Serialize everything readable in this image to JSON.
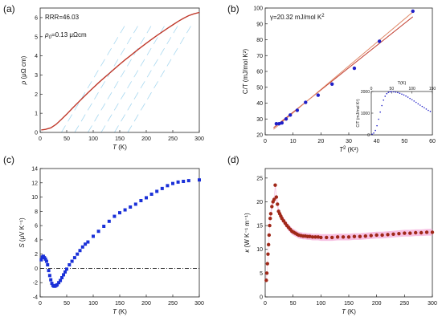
{
  "panel_labels": [
    "(a)",
    "(b)",
    "(c)",
    "(d)"
  ],
  "chart_data": [
    {
      "type": "line",
      "panel": "(a)",
      "annotations": [
        "RRR=46.03",
        "ρ0=0.13 μΩcm"
      ],
      "annotation_parts": {
        "rrr": "RRR=46.03",
        "rho_symbol": "ρ",
        "rho_sub": "0",
        "rho_value": "=0.13 μΩcm"
      },
      "xlabel_var": "T",
      "xlabel_unit": "(K)",
      "ylabel_var": "ρ",
      "ylabel_unit": "(μΩ cm)",
      "xlim": [
        0,
        300
      ],
      "ylim": [
        0,
        6.5
      ],
      "xticks": [
        0,
        50,
        100,
        150,
        200,
        250,
        300
      ],
      "yticks": [
        0,
        1,
        2,
        3,
        4,
        5,
        6
      ],
      "series": [
        {
          "color": "#c0392b",
          "x": [
            2,
            10,
            20,
            30,
            40,
            50,
            60,
            70,
            80,
            90,
            100,
            110,
            120,
            130,
            140,
            150,
            160,
            170,
            180,
            190,
            200,
            210,
            220,
            230,
            240,
            250,
            260,
            270,
            280,
            290,
            300
          ],
          "y": [
            0.13,
            0.16,
            0.24,
            0.42,
            0.68,
            0.95,
            1.24,
            1.52,
            1.8,
            2.07,
            2.33,
            2.59,
            2.84,
            3.08,
            3.32,
            3.56,
            3.79,
            4.01,
            4.23,
            4.45,
            4.66,
            4.86,
            5.06,
            5.25,
            5.44,
            5.62,
            5.8,
            5.96,
            6.1,
            6.2,
            6.27
          ]
        }
      ],
      "faint_lines_color": "#a8d8f0"
    },
    {
      "type": "scatter",
      "panel": "(b)",
      "annotations": [
        "γ=20.32 mJ/mol K²"
      ],
      "annotation_parts": {
        "gamma": "γ=20.32 mJ/mol K",
        "sup": "2"
      },
      "xlabel_var": "T",
      "xlabel_sup": "2",
      "xlabel_unit": "(K²)",
      "ylabel": "C/T (mJ/mol K²)",
      "xlim": [
        0,
        60
      ],
      "ylim": [
        20,
        100
      ],
      "xticks": [
        0,
        10,
        20,
        30,
        40,
        50,
        60
      ],
      "yticks": [
        20,
        30,
        40,
        50,
        60,
        70,
        80,
        90,
        100
      ],
      "points": {
        "color": "#2020c8",
        "x": [
          4,
          5,
          6,
          7.5,
          9,
          11.5,
          14.5,
          19,
          24,
          32,
          41,
          53
        ],
        "y": [
          27,
          27,
          27.5,
          30,
          32.5,
          35.5,
          40.5,
          45,
          52,
          62,
          79,
          98
        ]
      },
      "fit_lines": [
        {
          "color": "#c0392b",
          "x": [
            3,
            53
          ],
          "y": [
            24.5,
            94.5
          ]
        },
        {
          "color": "#e08a6a",
          "x": [
            3,
            53
          ],
          "y": [
            23.5,
            97.5
          ]
        }
      ],
      "inset": {
        "xlabel": "T(K)",
        "ylabel": "C/T (mJ/mol K²)",
        "xlim": [
          0,
          150
        ],
        "ylim": [
          0,
          2000
        ],
        "xticks": [
          0,
          50,
          100,
          150
        ],
        "yticks": [
          0,
          1000,
          2000
        ],
        "color": "#2020c8",
        "x": [
          2,
          6,
          10,
          14,
          18,
          22,
          26,
          30,
          34,
          38,
          42,
          46,
          50,
          55,
          60,
          65,
          70,
          75,
          80,
          85,
          90,
          95,
          100,
          105,
          110,
          115,
          120,
          125,
          130,
          135,
          140,
          145
        ],
        "y": [
          30,
          80,
          200,
          420,
          720,
          1050,
          1350,
          1600,
          1780,
          1900,
          1960,
          1985,
          1990,
          1985,
          1970,
          1950,
          1920,
          1880,
          1840,
          1790,
          1740,
          1680,
          1620,
          1560,
          1500,
          1430,
          1370,
          1310,
          1250,
          1190,
          1130,
          1080
        ]
      }
    },
    {
      "type": "scatter",
      "panel": "(c)",
      "xlabel_var": "T",
      "xlabel_unit": "(K)",
      "ylabel_var": "S",
      "ylabel_unit": "(μV K⁻¹)",
      "xlim": [
        0,
        300
      ],
      "ylim": [
        -4,
        14
      ],
      "xticks": [
        0,
        50,
        100,
        150,
        200,
        250,
        300
      ],
      "yticks": [
        -4,
        -2,
        0,
        2,
        4,
        6,
        8,
        10,
        12,
        14
      ],
      "reference_line_y": 0,
      "points": {
        "color": "#1a30d8",
        "x": [
          2,
          4,
          6,
          8,
          10,
          12,
          14,
          16,
          18,
          20,
          22,
          24,
          26,
          28,
          30,
          32,
          35,
          38,
          41,
          44,
          47,
          50,
          55,
          60,
          65,
          70,
          75,
          80,
          85,
          90,
          100,
          110,
          120,
          130,
          140,
          150,
          160,
          170,
          180,
          190,
          200,
          210,
          220,
          230,
          240,
          250,
          260,
          270,
          280,
          300
        ],
        "y": [
          1.2,
          1.6,
          1.7,
          1.5,
          1.3,
          1.0,
          0.5,
          -0.3,
          -1.0,
          -1.6,
          -2.1,
          -2.4,
          -2.5,
          -2.5,
          -2.4,
          -2.3,
          -2.0,
          -1.7,
          -1.3,
          -0.9,
          -0.5,
          -0.1,
          0.5,
          1.0,
          1.5,
          2.0,
          2.5,
          3.0,
          3.4,
          3.7,
          4.5,
          5.2,
          5.9,
          6.6,
          7.3,
          7.8,
          8.2,
          8.6,
          9.0,
          9.5,
          9.9,
          10.4,
          10.8,
          11.2,
          11.6,
          11.9,
          12.1,
          12.2,
          12.3,
          12.4
        ]
      }
    },
    {
      "type": "scatter",
      "panel": "(d)",
      "xlabel_var": "T",
      "xlabel_unit": "(K)",
      "ylabel_var": "κ",
      "ylabel_unit": "(W K⁻¹ m⁻¹)",
      "xlim": [
        0,
        300
      ],
      "ylim": [
        0,
        27
      ],
      "xticks": [
        0,
        50,
        100,
        150,
        200,
        250,
        300
      ],
      "yticks": [
        0,
        5,
        10,
        15,
        20,
        25
      ],
      "points": {
        "color": "#a02818",
        "band_color": "#f4a6d7",
        "x": [
          2,
          3,
          4,
          5,
          6,
          7,
          8,
          9,
          10,
          12,
          14,
          16,
          18,
          20,
          22,
          24,
          26,
          28,
          30,
          33,
          36,
          39,
          42,
          45,
          48,
          51,
          54,
          57,
          60,
          64,
          68,
          72,
          76,
          80,
          85,
          90,
          95,
          100,
          110,
          120,
          130,
          140,
          150,
          160,
          170,
          180,
          190,
          200,
          210,
          220,
          230,
          240,
          250,
          260,
          270,
          280,
          290,
          300
        ],
        "y": [
          3.5,
          5.0,
          7.0,
          9.0,
          11.0,
          13.0,
          15.0,
          16.5,
          17.5,
          19.0,
          20.0,
          20.5,
          23.5,
          21.0,
          19.5,
          18.0,
          17.5,
          17.0,
          16.5,
          16.0,
          15.5,
          15.0,
          14.6,
          14.2,
          13.8,
          13.6,
          13.4,
          13.2,
          13.0,
          12.9,
          12.8,
          12.8,
          12.7,
          12.7,
          12.6,
          12.6,
          12.6,
          12.5,
          12.5,
          12.5,
          12.6,
          12.6,
          12.6,
          12.7,
          12.7,
          12.8,
          12.9,
          13.0,
          13.0,
          13.1,
          13.2,
          13.3,
          13.4,
          13.4,
          13.5,
          13.5,
          13.6,
          13.6
        ]
      }
    }
  ]
}
